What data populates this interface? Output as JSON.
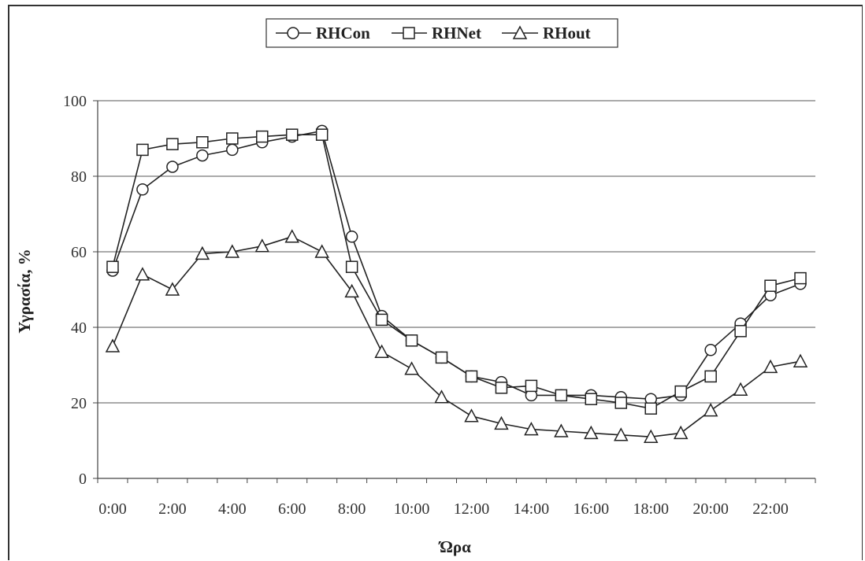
{
  "chart_data": {
    "type": "line",
    "title": "",
    "xlabel": "Ώρα",
    "ylabel": "Υγρασία, %",
    "ylim": [
      0,
      100
    ],
    "yticks": [
      0,
      20,
      40,
      60,
      80,
      100
    ],
    "xtick_labels": [
      "0:00",
      "2:00",
      "4:00",
      "6:00",
      "8:00",
      "10:00",
      "12:00",
      "14:00",
      "16:00",
      "18:00",
      "20:00",
      "22:00"
    ],
    "x": [
      0.5,
      1.5,
      2.5,
      3.5,
      4.5,
      5.5,
      6.5,
      7.5,
      8.5,
      9.5,
      10.5,
      11.5,
      12.5,
      13.5,
      14.5,
      15.5,
      16.5,
      17.5,
      18.5,
      19.5,
      20.5,
      21.5,
      22.5,
      23.5
    ],
    "x_axis_unit": "hours",
    "grid": "horizontal",
    "legend_position": "top-center",
    "series": [
      {
        "name": "RHCon",
        "marker": "circle",
        "values": [
          55,
          76.5,
          82.5,
          85.5,
          87,
          89,
          90.5,
          92,
          64,
          43,
          36.5,
          32,
          27,
          25.5,
          22,
          22,
          22,
          21.5,
          21,
          22,
          34,
          41,
          48.5,
          51.5
        ]
      },
      {
        "name": "RHNet",
        "marker": "square",
        "values": [
          56,
          87,
          88.5,
          89,
          90,
          90.5,
          91,
          91,
          56,
          42,
          36.5,
          32,
          27,
          24,
          24.5,
          22,
          21,
          20,
          18.5,
          23,
          27,
          39,
          51,
          53
        ]
      },
      {
        "name": "RHout",
        "marker": "triangle",
        "values": [
          35,
          54,
          50,
          59.5,
          60,
          61.5,
          64,
          60,
          49.5,
          33.5,
          29,
          21.5,
          16.5,
          14.5,
          13,
          12.5,
          12,
          11.5,
          11,
          12,
          18,
          23.5,
          29.5,
          31
        ]
      }
    ]
  }
}
